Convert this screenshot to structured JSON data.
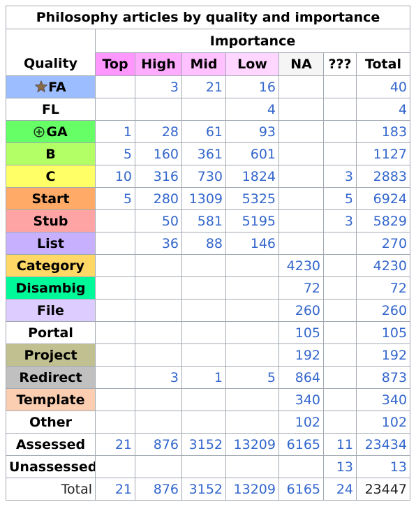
{
  "title": "Philosophy articles by quality and importance",
  "importance_label": "Importance",
  "quality_label": "Quality",
  "columns": [
    {
      "label": "Top",
      "color": "#ff97ff"
    },
    {
      "label": "High",
      "color": "#ffacff"
    },
    {
      "label": "Mid",
      "color": "#ffc1ff"
    },
    {
      "label": "Low",
      "color": "#ffd6ff"
    },
    {
      "label": "NA",
      "color": "#f5f5f5"
    },
    {
      "label": "???",
      "color": "#ffffff"
    },
    {
      "label": "Total",
      "color": "#ffffff"
    }
  ],
  "rows": [
    {
      "label": "FA",
      "icon": "featured-star-icon",
      "color": "#9cbdff",
      "cells": [
        "",
        "3",
        "21",
        "16",
        "",
        "",
        "40"
      ]
    },
    {
      "label": "FL",
      "icon": "",
      "color": "#ffffff",
      "cells": [
        "",
        "",
        "",
        "4",
        "",
        "",
        "4"
      ]
    },
    {
      "label": "GA",
      "icon": "good-article-icon",
      "color": "#66ff66",
      "cells": [
        "1",
        "28",
        "61",
        "93",
        "",
        "",
        "183"
      ]
    },
    {
      "label": "B",
      "icon": "",
      "color": "#b2ff66",
      "cells": [
        "5",
        "160",
        "361",
        "601",
        "",
        "",
        "1127"
      ]
    },
    {
      "label": "C",
      "icon": "",
      "color": "#ffff66",
      "cells": [
        "10",
        "316",
        "730",
        "1824",
        "",
        "3",
        "2883"
      ]
    },
    {
      "label": "Start",
      "icon": "",
      "color": "#ffaa66",
      "cells": [
        "5",
        "280",
        "1309",
        "5325",
        "",
        "5",
        "6924"
      ]
    },
    {
      "label": "Stub",
      "icon": "",
      "color": "#ffa4a4",
      "cells": [
        "",
        "50",
        "581",
        "5195",
        "",
        "3",
        "5829"
      ]
    },
    {
      "label": "List",
      "icon": "",
      "color": "#c7b1ff",
      "cells": [
        "",
        "36",
        "88",
        "146",
        "",
        "",
        "270"
      ]
    },
    {
      "label": "Category",
      "icon": "",
      "color": "#ffd866",
      "cells": [
        "",
        "",
        "",
        "",
        "4230",
        "",
        "4230"
      ]
    },
    {
      "label": "Disambig",
      "icon": "",
      "color": "#00fa9a",
      "cells": [
        "",
        "",
        "",
        "",
        "72",
        "",
        "72"
      ]
    },
    {
      "label": "File",
      "icon": "",
      "color": "#ddccff",
      "cells": [
        "",
        "",
        "",
        "",
        "260",
        "",
        "260"
      ]
    },
    {
      "label": "Portal",
      "icon": "",
      "color": "#ffffff",
      "cells": [
        "",
        "",
        "",
        "",
        "105",
        "",
        "105"
      ]
    },
    {
      "label": "Project",
      "icon": "",
      "color": "#c0c090",
      "cells": [
        "",
        "",
        "",
        "",
        "192",
        "",
        "192"
      ]
    },
    {
      "label": "Redirect",
      "icon": "",
      "color": "#c0c0c0",
      "cells": [
        "",
        "3",
        "1",
        "5",
        "864",
        "",
        "873"
      ]
    },
    {
      "label": "Template",
      "icon": "",
      "color": "#fbceb1",
      "cells": [
        "",
        "",
        "",
        "",
        "340",
        "",
        "340"
      ]
    },
    {
      "label": "Other",
      "icon": "",
      "color": "#ffffff",
      "cells": [
        "",
        "",
        "",
        "",
        "102",
        "",
        "102"
      ]
    },
    {
      "label": "Assessed",
      "icon": "",
      "color": "#ffffff",
      "cells": [
        "21",
        "876",
        "3152",
        "13209",
        "6165",
        "11",
        "23434"
      ]
    },
    {
      "label": "Unassessed",
      "icon": "",
      "color": "#ffffff",
      "cells": [
        "",
        "",
        "",
        "",
        "",
        "13",
        "13"
      ]
    }
  ],
  "total_row": {
    "label": "Total",
    "cells": [
      "21",
      "876",
      "3152",
      "13209",
      "6165",
      "24",
      "23447"
    ]
  }
}
